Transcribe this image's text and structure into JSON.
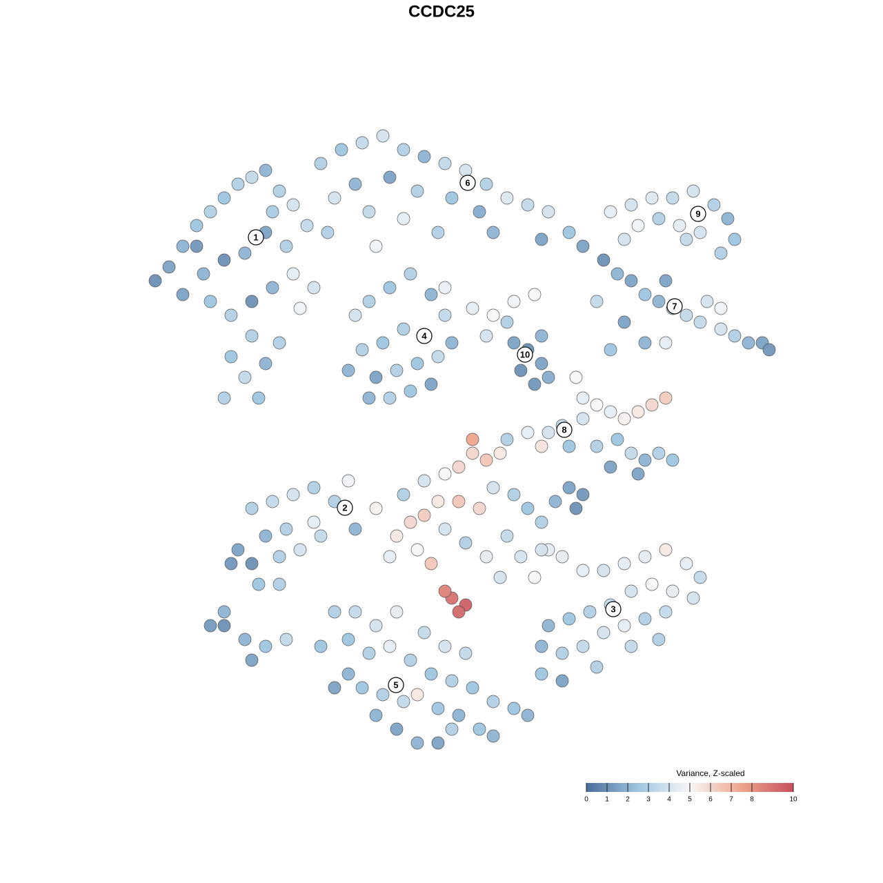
{
  "chart_data": {
    "type": "scatter",
    "title": "CCDC25",
    "xlim": [
      -47,
      47
    ],
    "ylim": [
      -46,
      46
    ],
    "x": [
      -42,
      -40,
      -38,
      -36,
      -34,
      -32,
      -30,
      -28,
      -26,
      -24,
      -22,
      -25,
      -28,
      -31,
      -34,
      -37,
      -40,
      -44,
      -36,
      -33,
      -30,
      -27,
      -24,
      -21,
      -30,
      -33,
      -31,
      -28,
      -26,
      -34,
      -29,
      -23,
      -38,
      -27,
      -20,
      -17,
      -14,
      -11,
      -8,
      -5,
      -2,
      1,
      4,
      7,
      10,
      13,
      16,
      -15,
      -10,
      -6,
      -1,
      3,
      -18,
      -13,
      -8,
      -3,
      5,
      12,
      -12,
      -19,
      -15,
      -13,
      -10,
      -7,
      -4,
      -2,
      -5,
      -8,
      -11,
      -14,
      -16,
      -12,
      -9,
      -6,
      -3,
      -1,
      -10,
      -7,
      -4,
      -13,
      -2,
      2,
      5,
      8,
      11,
      4,
      7,
      8,
      10,
      12,
      9,
      11,
      13,
      12,
      22,
      25,
      28,
      31,
      34,
      37,
      39,
      40,
      38,
      35,
      32,
      29,
      26,
      24,
      33,
      18,
      21,
      23,
      25,
      27,
      29,
      31,
      33,
      35,
      38,
      40,
      42,
      44,
      45,
      36,
      30,
      20,
      24,
      27,
      22,
      30,
      38,
      17,
      18,
      20,
      22,
      24,
      26,
      28,
      30,
      18,
      15,
      13,
      16,
      20,
      23,
      25,
      27,
      29,
      31,
      22,
      26,
      10,
      7,
      12,
      -8,
      -5,
      -2,
      2,
      4,
      6,
      2,
      0,
      -3,
      -5,
      -7,
      -9,
      -6,
      -4,
      0,
      3,
      5,
      8,
      10,
      12,
      14,
      16,
      17,
      18,
      -2,
      1,
      4,
      7,
      9,
      -1,
      1,
      0,
      -2,
      -12,
      -10,
      6,
      11,
      13,
      -21,
      -24,
      -27,
      -30,
      -21,
      -25,
      -28,
      -32,
      -30,
      -33,
      -26,
      -23,
      -20,
      -16,
      -18,
      -26,
      -29,
      -15,
      -34,
      -36,
      -31,
      -30,
      -28,
      -25,
      -34,
      12,
      15,
      18,
      21,
      24,
      27,
      30,
      33,
      35,
      34,
      31,
      28,
      25,
      22,
      19,
      16,
      13,
      12,
      15,
      18,
      21,
      24,
      27,
      30,
      12,
      15,
      20,
      25,
      29,
      -18,
      -15,
      -12,
      -9,
      -5,
      -2,
      1,
      -16,
      -13,
      -10,
      -7,
      -4,
      -1,
      2,
      5,
      8,
      10,
      -16,
      -14,
      -11,
      -8,
      -6,
      -3,
      0,
      3,
      5,
      -12,
      -9,
      -6,
      -3,
      -1,
      -18,
      -20
    ],
    "y": [
      25,
      28,
      31,
      33,
      35,
      37,
      38,
      39,
      36,
      34,
      31,
      28,
      30,
      27,
      26,
      24,
      21,
      23,
      20,
      18,
      20,
      22,
      24,
      22,
      15,
      12,
      9,
      11,
      14,
      6,
      6,
      19,
      28,
      33,
      40,
      42,
      43,
      44,
      42,
      41,
      40,
      39,
      37,
      35,
      34,
      33,
      30,
      37,
      38,
      36,
      35,
      33,
      35,
      33,
      32,
      30,
      30,
      29,
      28,
      30,
      18,
      20,
      22,
      24,
      21,
      18,
      15,
      16,
      14,
      13,
      10,
      9,
      10,
      11,
      12,
      14,
      6,
      7,
      8,
      6,
      22,
      19,
      18,
      20,
      21,
      15,
      17,
      14,
      13,
      11,
      10,
      8,
      9,
      15,
      33,
      34,
      35,
      35,
      36,
      34,
      32,
      29,
      27,
      30,
      31,
      32,
      31,
      29,
      29,
      28,
      26,
      24,
      23,
      21,
      20,
      19,
      18,
      17,
      16,
      15,
      14,
      14,
      13,
      20,
      23,
      20,
      17,
      14,
      13,
      14,
      19,
      9,
      6,
      5,
      4,
      3,
      4,
      5,
      6,
      3,
      2,
      1,
      -1,
      -1,
      0,
      -2,
      -3,
      -2,
      -3,
      -4,
      -5,
      1,
      0,
      -1,
      -8,
      -6,
      -5,
      -2,
      -3,
      -2,
      0,
      -4,
      -9,
      -11,
      -12,
      -14,
      -16,
      -18,
      -9,
      -10,
      -7,
      -8,
      -10,
      -12,
      -9,
      -7,
      -10,
      -8,
      -13,
      -15,
      -17,
      -14,
      -17,
      -23,
      -24,
      -25,
      -22,
      -10,
      -17,
      -20,
      -20,
      -16,
      -7,
      -8,
      -9,
      -10,
      -12,
      -13,
      -14,
      -16,
      -18,
      -18,
      -17,
      -16,
      -14,
      -6,
      -9,
      -21,
      -21,
      -13,
      -27,
      -27,
      -29,
      -32,
      -30,
      -29,
      -25,
      -16,
      -17,
      -19,
      -19,
      -18,
      -17,
      -16,
      -18,
      -20,
      -23,
      -22,
      -21,
      -22,
      -24,
      -25,
      -26,
      -27,
      -30,
      -31,
      -30,
      -28,
      -27,
      -26,
      -25,
      -34,
      -35,
      -33,
      -30,
      -29,
      -25,
      -25,
      -27,
      -25,
      -28,
      -30,
      -31,
      -29,
      -31,
      -30,
      -32,
      -34,
      -35,
      -36,
      -38,
      -39,
      -40,
      -34,
      -36,
      -37,
      -38,
      -37,
      -39,
      -40,
      -42,
      -43,
      -40,
      -42,
      -44,
      -44,
      -42,
      -36,
      -30
    ],
    "values": [
      1.5,
      2,
      2.5,
      3,
      2.5,
      3,
      3.5,
      2,
      3,
      4,
      3.5,
      3,
      1.5,
      2,
      1,
      2,
      1.5,
      1,
      2.5,
      3,
      1,
      2,
      4.5,
      4,
      3,
      2.5,
      3.5,
      2,
      3,
      3,
      2.5,
      4.8,
      1.2,
      2.8,
      3,
      2.5,
      3.5,
      4,
      3,
      2,
      3.5,
      4,
      3,
      4.2,
      3.5,
      4,
      2.5,
      2,
      1.5,
      3,
      2.5,
      1.8,
      4,
      3.5,
      4.5,
      3,
      2,
      1.5,
      4.8,
      3,
      4,
      3,
      2.5,
      3,
      2,
      3.5,
      2,
      3,
      2.5,
      3,
      2,
      1.5,
      3,
      2.5,
      3.5,
      2,
      3,
      2.5,
      1.5,
      2,
      4.6,
      4.5,
      5,
      4.8,
      5,
      4,
      3,
      1.5,
      1,
      1.5,
      1,
      1.2,
      1.8,
      2,
      4.5,
      4,
      4.2,
      3.5,
      4,
      3,
      2,
      2.5,
      3,
      4,
      4.5,
      3,
      4.8,
      4,
      3.5,
      1.5,
      1,
      2,
      1.5,
      2.5,
      2,
      3,
      3.5,
      3.5,
      4,
      3,
      2,
      1.5,
      1.2,
      4,
      1.5,
      3.5,
      1.5,
      2,
      2.5,
      4.5,
      4.8,
      5,
      4.5,
      5,
      4.5,
      5.2,
      5.5,
      6,
      6.3,
      4,
      3.5,
      4,
      2.5,
      3,
      2.5,
      3.5,
      2,
      3,
      2.5,
      1.5,
      1.5,
      4.5,
      3,
      5.6,
      3,
      4,
      5,
      6,
      6.5,
      5.5,
      7.5,
      6,
      5.5,
      6.3,
      6,
      5.5,
      5,
      6.5,
      6.5,
      6,
      4,
      3,
      2.5,
      3,
      2,
      1.5,
      1,
      1.2,
      4,
      3,
      4.5,
      3.5,
      4,
      9,
      9.5,
      9.2,
      8.5,
      5.2,
      4.5,
      4,
      5,
      4.5,
      3,
      4,
      3.5,
      3,
      4.5,
      3,
      2,
      1.5,
      1,
      1.2,
      3,
      4,
      3.5,
      4.8,
      3,
      3,
      2.5,
      2,
      1,
      1.3,
      2,
      1.5,
      2.5,
      3.5,
      2,
      4,
      4.5,
      4.5,
      4,
      4.5,
      4.5,
      5.5,
      4.5,
      3.5,
      4,
      4.5,
      5,
      4,
      3.5,
      3,
      2.5,
      2,
      2,
      3,
      3.5,
      4,
      4.5,
      3,
      3.5,
      2.5,
      1.5,
      3,
      3.5,
      3,
      3,
      3.5,
      4,
      4.5,
      3.5,
      4,
      3.5,
      2.5,
      3,
      4.5,
      3,
      2.5,
      3,
      2.5,
      3,
      2.5,
      2,
      2,
      2.5,
      3,
      3.5,
      5.5,
      2.5,
      2,
      2.5,
      2,
      2,
      1.5,
      2,
      1.5,
      3,
      1.5,
      2.5
    ],
    "clusters": [
      {
        "label": "1",
        "x": -29.4,
        "y": 29.3
      },
      {
        "label": "2",
        "x": -16.5,
        "y": -9.9
      },
      {
        "label": "3",
        "x": 22.4,
        "y": -24.6
      },
      {
        "label": "4",
        "x": -5,
        "y": 15
      },
      {
        "label": "5",
        "x": -9.1,
        "y": -35.6
      },
      {
        "label": "6",
        "x": 1.3,
        "y": 37.2
      },
      {
        "label": "7",
        "x": 31.3,
        "y": 19.3
      },
      {
        "label": "8",
        "x": 15.3,
        "y": 1.4
      },
      {
        "label": "9",
        "x": 34.7,
        "y": 32.7
      },
      {
        "label": "10",
        "x": 9.6,
        "y": 12.3
      }
    ],
    "colorbar_title": "Variance, Z-scaled",
    "colorbar_lim": [
      0,
      10
    ],
    "colorbar_ticks": [
      0,
      1,
      2,
      3,
      4,
      5,
      6,
      7,
      8,
      10
    ],
    "colorscale": [
      [
        0,
        "#4a6d99"
      ],
      [
        2.5,
        "#9ec5e0"
      ],
      [
        5,
        "#f7f7f7"
      ],
      [
        7.5,
        "#eea58c"
      ],
      [
        10,
        "#c6505e"
      ]
    ],
    "legend_position": "bottom-right"
  }
}
